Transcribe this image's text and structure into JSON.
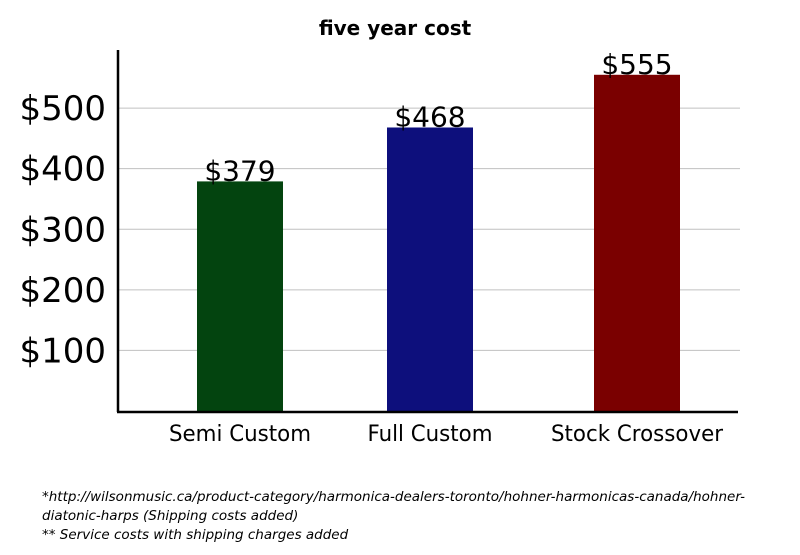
{
  "chart_data": {
    "type": "bar",
    "title": "five year cost",
    "xlabel": "",
    "ylabel": "",
    "categories": [
      "Semi Custom",
      "Full Custom",
      "Stock Crossover"
    ],
    "values": [
      379,
      468,
      555
    ],
    "data_labels": [
      "$379",
      "$468",
      "$555"
    ],
    "bar_colors": [
      "#03440f",
      "#0d0f7c",
      "#7a0000"
    ],
    "yticks": [
      100,
      200,
      300,
      400,
      500
    ],
    "ytick_labels": [
      "$100",
      "$200",
      "$300",
      "$400",
      "$500"
    ],
    "ylim": [
      0,
      590
    ],
    "grid": true,
    "legend": "none"
  },
  "footnotes": {
    "line1": "*http://wilsonmusic.ca/product-category/harmonica-dealers-toronto/hohner-harmonicas-canada/hohner-diatonic-harps (Shipping costs added)",
    "line2": "** Service costs with shipping charges added"
  }
}
